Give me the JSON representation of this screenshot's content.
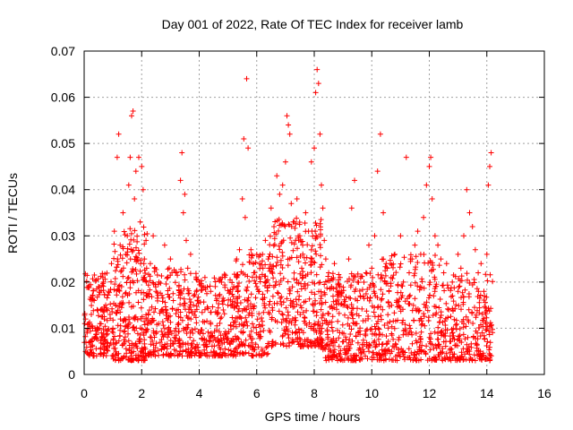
{
  "chart_data": {
    "type": "scatter",
    "title": "Day 001 of 2022, Rate Of TEC Index for receiver lamb",
    "xlabel": "GPS time / hours",
    "ylabel": "ROTI / TECUs",
    "xlim": [
      0,
      16
    ],
    "ylim": [
      0,
      0.07
    ],
    "xticks": [
      0,
      2,
      4,
      6,
      8,
      10,
      12,
      14,
      16
    ],
    "yticks": [
      0,
      0.01,
      0.02,
      0.03,
      0.04,
      0.05,
      0.06,
      0.07
    ],
    "xtick_labels": [
      "0",
      "2",
      "4",
      "6",
      "8",
      "10",
      "12",
      "14",
      "16"
    ],
    "ytick_labels": [
      "0",
      "0.01",
      "0.02",
      "0.03",
      "0.04",
      "0.05",
      "0.06",
      "0.07"
    ],
    "grid": true,
    "marker": "+",
    "color": "#ff0000",
    "series": [
      {
        "name": "ROTI",
        "points": [
          [
            0.05,
            0.012
          ],
          [
            0.1,
            0.009
          ],
          [
            0.15,
            0.011
          ],
          [
            0.2,
            0.007
          ],
          [
            0.25,
            0.013
          ],
          [
            0.3,
            0.01
          ],
          [
            0.35,
            0.016
          ],
          [
            0.4,
            0.008
          ],
          [
            0.45,
            0.014
          ],
          [
            0.5,
            0.019
          ],
          [
            0.55,
            0.011
          ],
          [
            0.6,
            0.009
          ],
          [
            0.65,
            0.021
          ],
          [
            0.7,
            0.012
          ],
          [
            0.75,
            0.015
          ],
          [
            0.8,
            0.006
          ],
          [
            0.85,
            0.018
          ],
          [
            0.9,
            0.013
          ],
          [
            0.95,
            0.024
          ],
          [
            1.0,
            0.01
          ],
          [
            1.05,
            0.031
          ],
          [
            1.1,
            0.015
          ],
          [
            1.15,
            0.047
          ],
          [
            1.2,
            0.052
          ],
          [
            1.25,
            0.028
          ],
          [
            1.3,
            0.019
          ],
          [
            1.35,
            0.035
          ],
          [
            1.4,
            0.012
          ],
          [
            1.45,
            0.026
          ],
          [
            1.5,
            0.03
          ],
          [
            1.55,
            0.041
          ],
          [
            1.6,
            0.047
          ],
          [
            1.65,
            0.056
          ],
          [
            1.7,
            0.057
          ],
          [
            1.75,
            0.038
          ],
          [
            1.8,
            0.044
          ],
          [
            1.85,
            0.025
          ],
          [
            1.9,
            0.047
          ],
          [
            1.95,
            0.033
          ],
          [
            2.0,
            0.045
          ],
          [
            2.05,
            0.04
          ],
          [
            2.1,
            0.021
          ],
          [
            2.15,
            0.029
          ],
          [
            2.2,
            0.017
          ],
          [
            2.3,
            0.024
          ],
          [
            2.4,
            0.03
          ],
          [
            2.5,
            0.018
          ],
          [
            2.6,
            0.02
          ],
          [
            2.7,
            0.014
          ],
          [
            2.8,
            0.028
          ],
          [
            2.9,
            0.021
          ],
          [
            3.0,
            0.025
          ],
          [
            3.1,
            0.016
          ],
          [
            3.2,
            0.022
          ],
          [
            3.3,
            0.019
          ],
          [
            3.35,
            0.042
          ],
          [
            3.4,
            0.048
          ],
          [
            3.45,
            0.035
          ],
          [
            3.5,
            0.039
          ],
          [
            3.55,
            0.029
          ],
          [
            3.6,
            0.023
          ],
          [
            3.7,
            0.026
          ],
          [
            3.8,
            0.015
          ],
          [
            3.9,
            0.018
          ],
          [
            4.0,
            0.02
          ],
          [
            4.2,
            0.014
          ],
          [
            4.4,
            0.018
          ],
          [
            4.6,
            0.016
          ],
          [
            4.8,
            0.021
          ],
          [
            5.0,
            0.015
          ],
          [
            5.2,
            0.019
          ],
          [
            5.3,
            0.025
          ],
          [
            5.4,
            0.027
          ],
          [
            5.5,
            0.038
          ],
          [
            5.55,
            0.051
          ],
          [
            5.6,
            0.034
          ],
          [
            5.65,
            0.064
          ],
          [
            5.7,
            0.049
          ],
          [
            5.8,
            0.027
          ],
          [
            5.9,
            0.022
          ],
          [
            6.0,
            0.019
          ],
          [
            6.1,
            0.024
          ],
          [
            6.2,
            0.026
          ],
          [
            6.3,
            0.029
          ],
          [
            6.4,
            0.025
          ],
          [
            6.5,
            0.036
          ],
          [
            6.6,
            0.032
          ],
          [
            6.7,
            0.043
          ],
          [
            6.8,
            0.039
          ],
          [
            6.9,
            0.041
          ],
          [
            7.0,
            0.046
          ],
          [
            7.05,
            0.056
          ],
          [
            7.1,
            0.054
          ],
          [
            7.15,
            0.052
          ],
          [
            7.2,
            0.037
          ],
          [
            7.3,
            0.033
          ],
          [
            7.4,
            0.038
          ],
          [
            7.5,
            0.03
          ],
          [
            7.6,
            0.028
          ],
          [
            7.7,
            0.035
          ],
          [
            7.8,
            0.031
          ],
          [
            7.9,
            0.046
          ],
          [
            8.0,
            0.049
          ],
          [
            8.05,
            0.061
          ],
          [
            8.1,
            0.066
          ],
          [
            8.15,
            0.063
          ],
          [
            8.2,
            0.052
          ],
          [
            8.25,
            0.041
          ],
          [
            8.3,
            0.036
          ],
          [
            8.35,
            0.029
          ],
          [
            8.4,
            0.025
          ],
          [
            8.5,
            0.022
          ],
          [
            8.6,
            0.019
          ],
          [
            8.7,
            0.024
          ],
          [
            8.8,
            0.018
          ],
          [
            8.9,
            0.021
          ],
          [
            9.0,
            0.015
          ],
          [
            9.2,
            0.025
          ],
          [
            9.3,
            0.036
          ],
          [
            9.4,
            0.042
          ],
          [
            9.5,
            0.02
          ],
          [
            9.6,
            0.017
          ],
          [
            9.8,
            0.022
          ],
          [
            9.9,
            0.028
          ],
          [
            10.0,
            0.023
          ],
          [
            10.1,
            0.03
          ],
          [
            10.2,
            0.044
          ],
          [
            10.3,
            0.052
          ],
          [
            10.4,
            0.035
          ],
          [
            10.5,
            0.024
          ],
          [
            10.6,
            0.018
          ],
          [
            10.8,
            0.026
          ],
          [
            11.0,
            0.03
          ],
          [
            11.1,
            0.02
          ],
          [
            11.2,
            0.047
          ],
          [
            11.3,
            0.022
          ],
          [
            11.4,
            0.025
          ],
          [
            11.5,
            0.028
          ],
          [
            11.6,
            0.031
          ],
          [
            11.7,
            0.026
          ],
          [
            11.8,
            0.034
          ],
          [
            11.9,
            0.041
          ],
          [
            12.0,
            0.045
          ],
          [
            12.05,
            0.047
          ],
          [
            12.1,
            0.038
          ],
          [
            12.2,
            0.03
          ],
          [
            12.3,
            0.028
          ],
          [
            12.4,
            0.025
          ],
          [
            12.5,
            0.022
          ],
          [
            12.6,
            0.024
          ],
          [
            12.8,
            0.02
          ],
          [
            13.0,
            0.026
          ],
          [
            13.1,
            0.023
          ],
          [
            13.2,
            0.03
          ],
          [
            13.3,
            0.04
          ],
          [
            13.4,
            0.035
          ],
          [
            13.5,
            0.032
          ],
          [
            13.6,
            0.027
          ],
          [
            13.7,
            0.022
          ],
          [
            13.8,
            0.024
          ],
          [
            13.9,
            0.018
          ],
          [
            14.0,
            0.026
          ],
          [
            14.05,
            0.041
          ],
          [
            14.1,
            0.045
          ],
          [
            14.15,
            0.048
          ]
        ]
      }
    ],
    "density_bands": [
      {
        "x": [
          0.0,
          1.0
        ],
        "y": [
          0.004,
          0.022
        ],
        "count": 160
      },
      {
        "x": [
          1.0,
          2.2
        ],
        "y": [
          0.003,
          0.032
        ],
        "count": 260
      },
      {
        "x": [
          2.2,
          3.4
        ],
        "y": [
          0.004,
          0.024
        ],
        "count": 200
      },
      {
        "x": [
          3.4,
          5.2
        ],
        "y": [
          0.004,
          0.022
        ],
        "count": 280
      },
      {
        "x": [
          5.2,
          6.4
        ],
        "y": [
          0.004,
          0.026
        ],
        "count": 200
      },
      {
        "x": [
          6.4,
          8.3
        ],
        "y": [
          0.006,
          0.034
        ],
        "count": 340
      },
      {
        "x": [
          8.3,
          10.2
        ],
        "y": [
          0.003,
          0.022
        ],
        "count": 300
      },
      {
        "x": [
          10.2,
          12.4
        ],
        "y": [
          0.003,
          0.026
        ],
        "count": 320
      },
      {
        "x": [
          12.4,
          14.2
        ],
        "y": [
          0.003,
          0.022
        ],
        "count": 260
      }
    ]
  }
}
